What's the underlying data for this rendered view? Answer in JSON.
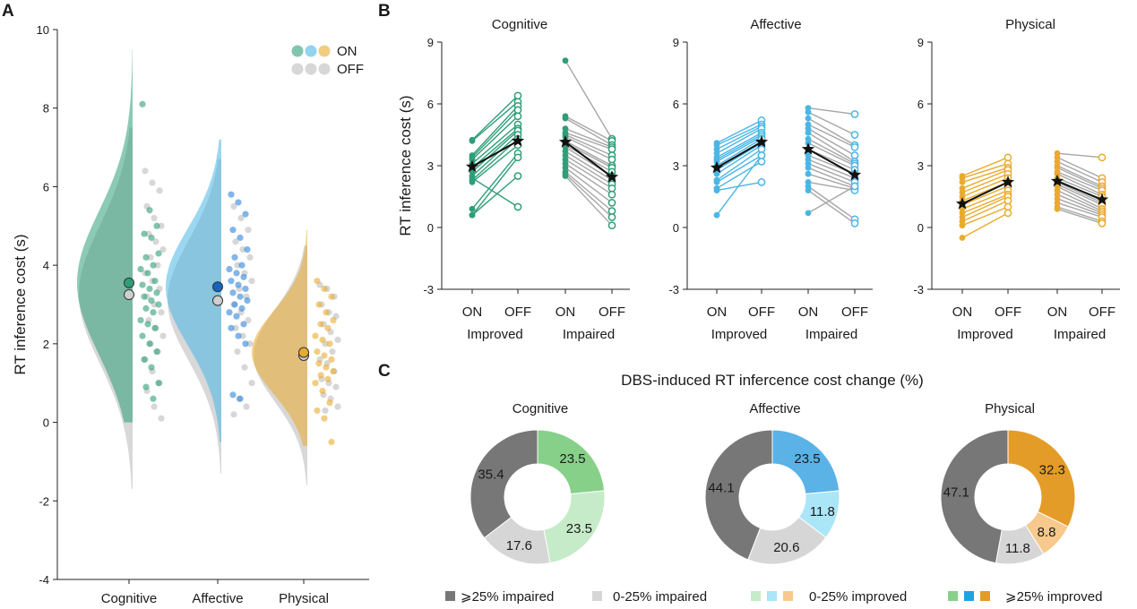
{
  "panels": {
    "a": "A",
    "b": "B",
    "c": "C"
  },
  "colors": {
    "cognitive": "#2e9e78",
    "affective": "#4ab6e6",
    "physical": "#e9ab2d",
    "off": "#9d9d9d",
    "mean_star": "#111111",
    "affective_on_mean": "#1565c0"
  },
  "chart_data": [
    {
      "id": "A",
      "type": "scatter",
      "subtype": "raincloud",
      "ylabel": "RT inference cost (s)",
      "ylim": [
        -4,
        10
      ],
      "yticks": [
        -4,
        -2,
        0,
        2,
        4,
        6,
        8,
        10
      ],
      "categories": [
        "Cognitive",
        "Affective",
        "Physical"
      ],
      "legend": {
        "position": "top-right",
        "on_label": "ON",
        "off_label": "OFF"
      },
      "means": {
        "on": [
          3.55,
          3.45,
          1.78
        ],
        "off": [
          3.25,
          3.1,
          1.7
        ]
      },
      "density_range": {
        "on": [
          [
            0,
            9.5
          ],
          [
            -0.5,
            7.2
          ],
          [
            -0.6,
            4.9
          ]
        ],
        "off": [
          [
            -1.7,
            7.5
          ],
          [
            -1.3,
            6.7
          ],
          [
            -1.6,
            4.5
          ]
        ]
      },
      "points": {
        "on": [
          [
            8.1,
            5.4,
            5.0,
            4.8,
            4.7,
            4.3,
            4.2,
            4.0,
            3.9,
            3.8,
            3.6,
            3.5,
            3.4,
            3.3,
            3.2,
            3.1,
            3.0,
            2.9,
            2.8,
            2.6,
            2.5,
            2.4,
            2.2,
            2.0,
            1.8,
            1.6,
            1.4,
            1.0,
            0.9,
            0.6
          ],
          [
            5.8,
            5.6,
            5.3,
            4.9,
            4.7,
            4.4,
            4.2,
            4.0,
            3.9,
            3.8,
            3.7,
            3.6,
            3.5,
            3.4,
            3.3,
            3.2,
            3.1,
            3.0,
            2.9,
            2.8,
            2.7,
            2.5,
            2.4,
            2.2,
            2.0,
            0.7,
            0.6
          ],
          [
            3.6,
            3.4,
            3.2,
            3.0,
            2.8,
            2.6,
            2.5,
            2.4,
            2.2,
            2.1,
            2.0,
            1.8,
            1.7,
            1.6,
            1.5,
            1.4,
            1.3,
            1.2,
            1.1,
            1.0,
            0.8,
            0.5,
            0.3,
            0.1,
            -0.5
          ]
        ],
        "off": [
          [
            6.4,
            6.1,
            5.9,
            5.5,
            5.2,
            5.0,
            4.8,
            4.6,
            4.4,
            4.2,
            4.0,
            3.8,
            3.6,
            3.4,
            3.2,
            3.0,
            2.8,
            2.6,
            2.4,
            2.2,
            2.0,
            1.8,
            1.6,
            1.3,
            1.0,
            0.8,
            0.4,
            0.1
          ],
          [
            5.5,
            5.2,
            4.9,
            4.6,
            4.4,
            4.2,
            4.0,
            3.8,
            3.6,
            3.4,
            3.2,
            3.0,
            2.8,
            2.6,
            2.4,
            2.2,
            2.0,
            1.8,
            1.4,
            1.0,
            0.6,
            0.4,
            0.2
          ],
          [
            3.5,
            3.4,
            3.2,
            3.0,
            2.8,
            2.7,
            2.5,
            2.3,
            2.1,
            2.0,
            1.8,
            1.6,
            1.5,
            1.3,
            1.1,
            1.0,
            0.9,
            0.7,
            0.6,
            0.4,
            0.3
          ]
        ]
      }
    },
    {
      "id": "B",
      "type": "line",
      "ylabel": "RT inference cost (s)",
      "ylim": [
        -3,
        9
      ],
      "yticks": [
        -3,
        0,
        3,
        6,
        9
      ],
      "x_categories": [
        "ON",
        "OFF",
        "ON",
        "OFF"
      ],
      "group_labels": [
        "Improved",
        "Impaired"
      ],
      "subplots": [
        {
          "title": "Cognitive",
          "color": "cognitive",
          "improved": [
            [
              4.25,
              6.4
            ],
            [
              4.2,
              6.1
            ],
            [
              3.5,
              5.9
            ],
            [
              3.4,
              5.7
            ],
            [
              3.3,
              5.4
            ],
            [
              3.1,
              5.0
            ],
            [
              2.9,
              4.8
            ],
            [
              2.7,
              4.7
            ],
            [
              2.5,
              4.5
            ],
            [
              2.3,
              4.3
            ],
            [
              2.2,
              4.0
            ],
            [
              0.9,
              3.6
            ],
            [
              0.6,
              3.4
            ],
            [
              0.6,
              2.5
            ],
            [
              2.4,
              1.0
            ]
          ],
          "improved_mean": [
            2.95,
            4.2
          ],
          "impaired": [
            [
              8.1,
              4.3
            ],
            [
              5.4,
              4.2
            ],
            [
              5.3,
              4.0
            ],
            [
              4.8,
              3.9
            ],
            [
              4.6,
              3.8
            ],
            [
              4.5,
              3.5
            ],
            [
              4.4,
              3.3
            ],
            [
              4.2,
              3.0
            ],
            [
              4.1,
              2.9
            ],
            [
              4.0,
              2.7
            ],
            [
              3.9,
              2.5
            ],
            [
              3.7,
              2.3
            ],
            [
              3.5,
              2.1
            ],
            [
              3.3,
              1.9
            ],
            [
              3.1,
              1.6
            ],
            [
              2.9,
              1.2
            ],
            [
              2.7,
              0.8
            ],
            [
              2.6,
              0.5
            ],
            [
              2.5,
              0.1
            ]
          ],
          "impaired_mean": [
            4.15,
            2.45
          ]
        },
        {
          "title": "Affective",
          "color": "affective",
          "improved": [
            [
              4.1,
              5.2
            ],
            [
              4.0,
              5.0
            ],
            [
              3.8,
              4.9
            ],
            [
              3.6,
              4.8
            ],
            [
              3.4,
              4.6
            ],
            [
              3.3,
              4.5
            ],
            [
              3.2,
              4.4
            ],
            [
              3.0,
              4.3
            ],
            [
              2.8,
              4.1
            ],
            [
              2.6,
              4.0
            ],
            [
              2.3,
              3.8
            ],
            [
              2.2,
              3.5
            ],
            [
              1.9,
              3.2
            ],
            [
              1.8,
              2.2
            ],
            [
              0.6,
              3.5
            ]
          ],
          "improved_mean": [
            2.9,
            4.15
          ],
          "impaired": [
            [
              5.8,
              5.5
            ],
            [
              5.6,
              4.5
            ],
            [
              5.3,
              4.0
            ],
            [
              5.0,
              3.9
            ],
            [
              4.8,
              3.5
            ],
            [
              4.6,
              3.2
            ],
            [
              4.3,
              3.1
            ],
            [
              4.1,
              3.0
            ],
            [
              3.8,
              2.8
            ],
            [
              3.5,
              2.6
            ],
            [
              3.3,
              2.4
            ],
            [
              3.1,
              2.2
            ],
            [
              2.9,
              2.0
            ],
            [
              2.6,
              1.9
            ],
            [
              2.2,
              1.8
            ],
            [
              2.0,
              0.4
            ],
            [
              1.8,
              0.2
            ],
            [
              0.7,
              2.0
            ]
          ],
          "impaired_mean": [
            3.8,
            2.55
          ]
        },
        {
          "title": "Physical",
          "color": "physical",
          "improved": [
            [
              2.5,
              3.4
            ],
            [
              2.4,
              3.1
            ],
            [
              2.2,
              2.9
            ],
            [
              1.9,
              2.8
            ],
            [
              1.7,
              2.6
            ],
            [
              1.5,
              2.4
            ],
            [
              1.3,
              2.2
            ],
            [
              1.1,
              2.0
            ],
            [
              0.9,
              1.8
            ],
            [
              0.7,
              1.6
            ],
            [
              0.5,
              1.5
            ],
            [
              0.3,
              1.3
            ],
            [
              0.1,
              1.0
            ],
            [
              -0.5,
              0.7
            ]
          ],
          "improved_mean": [
            1.15,
            2.2
          ],
          "impaired": [
            [
              3.6,
              3.4
            ],
            [
              3.4,
              2.4
            ],
            [
              3.2,
              2.2
            ],
            [
              3.0,
              2.0
            ],
            [
              2.9,
              1.9
            ],
            [
              2.7,
              1.8
            ],
            [
              2.6,
              1.6
            ],
            [
              2.4,
              1.5
            ],
            [
              2.3,
              1.3
            ],
            [
              2.2,
              1.2
            ],
            [
              2.1,
              1.1
            ],
            [
              2.0,
              0.9
            ],
            [
              1.8,
              0.8
            ],
            [
              1.6,
              0.7
            ],
            [
              1.4,
              0.6
            ],
            [
              1.2,
              0.5
            ],
            [
              1.0,
              0.3
            ],
            [
              0.9,
              0.2
            ]
          ],
          "impaired_mean": [
            2.25,
            1.35
          ]
        }
      ]
    },
    {
      "id": "C",
      "type": "pie",
      "subtype": "donut",
      "title": "DBS-induced RT infercence cost change (%)",
      "categories": [
        "Cognitive",
        "Affective",
        "Physical"
      ],
      "slices": [
        [
          {
            "value": 23.5,
            "class": "imp25",
            "color": "#87d089"
          },
          {
            "value": 23.5,
            "class": "imp0",
            "color": "#c6ebc8"
          },
          {
            "value": 17.6,
            "class": "imp0_25",
            "color": "#d6d6d6"
          },
          {
            "value": 35.4,
            "class": "impair25",
            "color": "#777777"
          }
        ],
        [
          {
            "value": 23.5,
            "class": "imp25",
            "color": "#5ab2e6"
          },
          {
            "value": 11.8,
            "class": "imp0",
            "color": "#abe6f8"
          },
          {
            "value": 20.6,
            "class": "imp0_25",
            "color": "#d6d6d6"
          },
          {
            "value": 44.1,
            "class": "impair25",
            "color": "#777777"
          }
        ],
        [
          {
            "value": 32.3,
            "class": "imp25",
            "color": "#e49c28"
          },
          {
            "value": 8.8,
            "class": "imp0",
            "color": "#f7c98c"
          },
          {
            "value": 11.8,
            "class": "imp0_25",
            "color": "#d6d6d6"
          },
          {
            "value": 47.1,
            "class": "impair25",
            "color": "#777777"
          }
        ]
      ],
      "legend": {
        "position": "bottom",
        "items": [
          {
            "label": "⩾25% impaired",
            "colors": [
              "#777777"
            ]
          },
          {
            "label": "0-25% impaired",
            "colors": [
              "#d6d6d6"
            ]
          },
          {
            "label": "0-25% improved",
            "colors": [
              "#c6ebc8",
              "#abe6f8",
              "#f7c98c"
            ]
          },
          {
            "label": "⩾25% improved",
            "colors": [
              "#87d089",
              "#1ca3e4",
              "#e49c28"
            ]
          }
        ]
      }
    }
  ]
}
